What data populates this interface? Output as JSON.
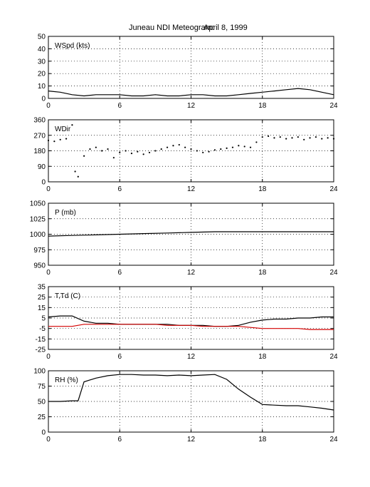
{
  "title": "Juneau NDI Meteogram:",
  "date": "April  8, 1999",
  "chart_data": [
    {
      "type": "line",
      "label": "WSpd (kts)",
      "x_range": [
        0,
        24
      ],
      "x_ticks": [
        "0",
        "6",
        "12",
        "18",
        "24"
      ],
      "ylim": [
        0,
        50
      ],
      "y_ticks": [
        "0",
        "10",
        "20",
        "30",
        "40",
        "50"
      ],
      "grid": true,
      "series": [
        {
          "color": "#000000",
          "style": "line",
          "x": [
            0,
            1,
            2,
            3,
            4,
            5,
            6,
            7,
            8,
            9,
            10,
            11,
            12,
            13,
            14,
            15,
            16,
            17,
            18,
            19,
            20,
            21,
            22,
            23,
            24
          ],
          "y": [
            6,
            5,
            3,
            2,
            3,
            3,
            3,
            2,
            2,
            3,
            2,
            2,
            3,
            3,
            2,
            2,
            3,
            4,
            5,
            6,
            7,
            8,
            7,
            5,
            3
          ]
        }
      ]
    },
    {
      "type": "scatter",
      "label": "WDir",
      "x_range": [
        0,
        24
      ],
      "x_ticks": [
        "0",
        "6",
        "12",
        "18",
        "24"
      ],
      "ylim": [
        0,
        360
      ],
      "y_ticks": [
        "0",
        "90",
        "180",
        "270",
        "360"
      ],
      "grid": true,
      "series": [
        {
          "color": "#000000",
          "style": "dots",
          "x": [
            0,
            0.5,
            1,
            1.5,
            2,
            2.25,
            2.5,
            3,
            3.5,
            4,
            4.5,
            5,
            5.5,
            6,
            6.5,
            7,
            7.5,
            8,
            8.5,
            9,
            9.5,
            10,
            10.5,
            11,
            11.5,
            12,
            12.5,
            13,
            13.5,
            14,
            14.5,
            15,
            15.5,
            16,
            16.5,
            17,
            17.5,
            18,
            18.5,
            19,
            19.5,
            20,
            20.5,
            21,
            21.5,
            22,
            22.5,
            23,
            23.5,
            24
          ],
          "y": [
            240,
            235,
            245,
            250,
            330,
            60,
            30,
            150,
            190,
            200,
            180,
            190,
            140,
            170,
            180,
            165,
            175,
            160,
            170,
            180,
            190,
            200,
            210,
            215,
            200,
            190,
            180,
            170,
            175,
            185,
            190,
            195,
            200,
            210,
            205,
            200,
            230,
            260,
            265,
            255,
            260,
            250,
            255,
            260,
            245,
            255,
            260,
            250,
            255,
            250
          ]
        }
      ]
    },
    {
      "type": "line",
      "label": "P (mb)",
      "x_range": [
        0,
        24
      ],
      "x_ticks": [
        "0",
        "6",
        "12",
        "18",
        "24"
      ],
      "ylim": [
        950,
        1050
      ],
      "y_ticks": [
        "950",
        "975",
        "1000",
        "1025",
        "1050"
      ],
      "grid": true,
      "series": [
        {
          "color": "#000000",
          "style": "line",
          "x": [
            0,
            2,
            4,
            6,
            8,
            10,
            12,
            14,
            16,
            18,
            20,
            22,
            24
          ],
          "y": [
            997,
            998,
            999,
            1000,
            1001,
            1002,
            1003,
            1004,
            1004,
            1004,
            1004,
            1004,
            1004
          ]
        }
      ]
    },
    {
      "type": "line",
      "label": "T,Td (C)",
      "x_range": [
        0,
        24
      ],
      "x_ticks": [
        "0",
        "6",
        "12",
        "18",
        "24"
      ],
      "ylim": [
        -25,
        35
      ],
      "y_ticks": [
        "-25",
        "-15",
        "-5",
        "5",
        "15",
        "25",
        "35"
      ],
      "grid": true,
      "series": [
        {
          "color": "#000000",
          "style": "line",
          "x": [
            0,
            1,
            2,
            3,
            4,
            5,
            6,
            7,
            8,
            9,
            10,
            11,
            12,
            13,
            14,
            15,
            16,
            17,
            18,
            19,
            20,
            21,
            22,
            23,
            24
          ],
          "y": [
            6,
            7,
            7,
            2,
            0,
            0,
            -1,
            -1,
            -1,
            -1,
            -1,
            -2,
            -2,
            -2,
            -3,
            -3,
            -2,
            1,
            3,
            4,
            4,
            5,
            5,
            6,
            6
          ]
        },
        {
          "color": "#d40000",
          "style": "line",
          "x": [
            0,
            1,
            2,
            3,
            4,
            5,
            6,
            7,
            8,
            9,
            10,
            11,
            12,
            13,
            14,
            15,
            16,
            17,
            18,
            19,
            20,
            21,
            22,
            23,
            24
          ],
          "y": [
            -3,
            -3,
            -3,
            -1,
            -1,
            -1,
            -1,
            -1,
            -1,
            -1,
            -2,
            -2,
            -2,
            -3,
            -3,
            -3,
            -3,
            -4,
            -5,
            -5,
            -5,
            -5,
            -6,
            -6,
            -6
          ]
        }
      ]
    },
    {
      "type": "line",
      "label": "RH (%)",
      "x_range": [
        0,
        24
      ],
      "x_ticks": [
        "0",
        "6",
        "12",
        "18",
        "24"
      ],
      "ylim": [
        0,
        100
      ],
      "y_ticks": [
        "0",
        "25",
        "50",
        "75",
        "100"
      ],
      "grid": true,
      "series": [
        {
          "color": "#000000",
          "style": "line",
          "x": [
            0,
            1,
            2,
            2.5,
            3,
            4,
            5,
            6,
            7,
            8,
            9,
            10,
            11,
            12,
            13,
            14,
            15,
            16,
            17,
            18,
            19,
            20,
            21,
            22,
            23,
            24
          ],
          "y": [
            50,
            50,
            51,
            51,
            82,
            88,
            92,
            94,
            94,
            93,
            93,
            92,
            93,
            92,
            93,
            94,
            86,
            70,
            57,
            45,
            44,
            43,
            43,
            41,
            39,
            36
          ]
        }
      ]
    }
  ]
}
